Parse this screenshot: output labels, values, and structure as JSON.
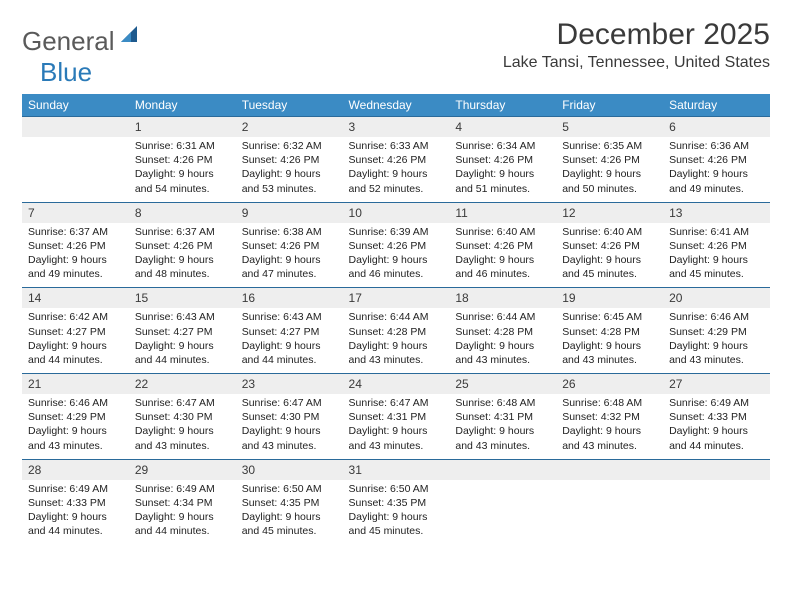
{
  "logo": {
    "text_general": "General",
    "text_blue": "Blue"
  },
  "title": "December 2025",
  "location": "Lake Tansi, Tennessee, United States",
  "colors": {
    "header_bg": "#3b8bc4",
    "header_text": "#ffffff",
    "daynum_bg": "#eeeeee",
    "row_border": "#2a6a9a",
    "logo_gray": "#5a5a5a",
    "logo_blue": "#2a7ab8"
  },
  "weekdays": [
    "Sunday",
    "Monday",
    "Tuesday",
    "Wednesday",
    "Thursday",
    "Friday",
    "Saturday"
  ],
  "weeks": [
    {
      "nums": [
        "",
        "1",
        "2",
        "3",
        "4",
        "5",
        "6"
      ],
      "cells": [
        {
          "sunrise": "",
          "sunset": "",
          "daylight": ""
        },
        {
          "sunrise": "Sunrise: 6:31 AM",
          "sunset": "Sunset: 4:26 PM",
          "daylight": "Daylight: 9 hours and 54 minutes."
        },
        {
          "sunrise": "Sunrise: 6:32 AM",
          "sunset": "Sunset: 4:26 PM",
          "daylight": "Daylight: 9 hours and 53 minutes."
        },
        {
          "sunrise": "Sunrise: 6:33 AM",
          "sunset": "Sunset: 4:26 PM",
          "daylight": "Daylight: 9 hours and 52 minutes."
        },
        {
          "sunrise": "Sunrise: 6:34 AM",
          "sunset": "Sunset: 4:26 PM",
          "daylight": "Daylight: 9 hours and 51 minutes."
        },
        {
          "sunrise": "Sunrise: 6:35 AM",
          "sunset": "Sunset: 4:26 PM",
          "daylight": "Daylight: 9 hours and 50 minutes."
        },
        {
          "sunrise": "Sunrise: 6:36 AM",
          "sunset": "Sunset: 4:26 PM",
          "daylight": "Daylight: 9 hours and 49 minutes."
        }
      ]
    },
    {
      "nums": [
        "7",
        "8",
        "9",
        "10",
        "11",
        "12",
        "13"
      ],
      "cells": [
        {
          "sunrise": "Sunrise: 6:37 AM",
          "sunset": "Sunset: 4:26 PM",
          "daylight": "Daylight: 9 hours and 49 minutes."
        },
        {
          "sunrise": "Sunrise: 6:37 AM",
          "sunset": "Sunset: 4:26 PM",
          "daylight": "Daylight: 9 hours and 48 minutes."
        },
        {
          "sunrise": "Sunrise: 6:38 AM",
          "sunset": "Sunset: 4:26 PM",
          "daylight": "Daylight: 9 hours and 47 minutes."
        },
        {
          "sunrise": "Sunrise: 6:39 AM",
          "sunset": "Sunset: 4:26 PM",
          "daylight": "Daylight: 9 hours and 46 minutes."
        },
        {
          "sunrise": "Sunrise: 6:40 AM",
          "sunset": "Sunset: 4:26 PM",
          "daylight": "Daylight: 9 hours and 46 minutes."
        },
        {
          "sunrise": "Sunrise: 6:40 AM",
          "sunset": "Sunset: 4:26 PM",
          "daylight": "Daylight: 9 hours and 45 minutes."
        },
        {
          "sunrise": "Sunrise: 6:41 AM",
          "sunset": "Sunset: 4:26 PM",
          "daylight": "Daylight: 9 hours and 45 minutes."
        }
      ]
    },
    {
      "nums": [
        "14",
        "15",
        "16",
        "17",
        "18",
        "19",
        "20"
      ],
      "cells": [
        {
          "sunrise": "Sunrise: 6:42 AM",
          "sunset": "Sunset: 4:27 PM",
          "daylight": "Daylight: 9 hours and 44 minutes."
        },
        {
          "sunrise": "Sunrise: 6:43 AM",
          "sunset": "Sunset: 4:27 PM",
          "daylight": "Daylight: 9 hours and 44 minutes."
        },
        {
          "sunrise": "Sunrise: 6:43 AM",
          "sunset": "Sunset: 4:27 PM",
          "daylight": "Daylight: 9 hours and 44 minutes."
        },
        {
          "sunrise": "Sunrise: 6:44 AM",
          "sunset": "Sunset: 4:28 PM",
          "daylight": "Daylight: 9 hours and 43 minutes."
        },
        {
          "sunrise": "Sunrise: 6:44 AM",
          "sunset": "Sunset: 4:28 PM",
          "daylight": "Daylight: 9 hours and 43 minutes."
        },
        {
          "sunrise": "Sunrise: 6:45 AM",
          "sunset": "Sunset: 4:28 PM",
          "daylight": "Daylight: 9 hours and 43 minutes."
        },
        {
          "sunrise": "Sunrise: 6:46 AM",
          "sunset": "Sunset: 4:29 PM",
          "daylight": "Daylight: 9 hours and 43 minutes."
        }
      ]
    },
    {
      "nums": [
        "21",
        "22",
        "23",
        "24",
        "25",
        "26",
        "27"
      ],
      "cells": [
        {
          "sunrise": "Sunrise: 6:46 AM",
          "sunset": "Sunset: 4:29 PM",
          "daylight": "Daylight: 9 hours and 43 minutes."
        },
        {
          "sunrise": "Sunrise: 6:47 AM",
          "sunset": "Sunset: 4:30 PM",
          "daylight": "Daylight: 9 hours and 43 minutes."
        },
        {
          "sunrise": "Sunrise: 6:47 AM",
          "sunset": "Sunset: 4:30 PM",
          "daylight": "Daylight: 9 hours and 43 minutes."
        },
        {
          "sunrise": "Sunrise: 6:47 AM",
          "sunset": "Sunset: 4:31 PM",
          "daylight": "Daylight: 9 hours and 43 minutes."
        },
        {
          "sunrise": "Sunrise: 6:48 AM",
          "sunset": "Sunset: 4:31 PM",
          "daylight": "Daylight: 9 hours and 43 minutes."
        },
        {
          "sunrise": "Sunrise: 6:48 AM",
          "sunset": "Sunset: 4:32 PM",
          "daylight": "Daylight: 9 hours and 43 minutes."
        },
        {
          "sunrise": "Sunrise: 6:49 AM",
          "sunset": "Sunset: 4:33 PM",
          "daylight": "Daylight: 9 hours and 44 minutes."
        }
      ]
    },
    {
      "nums": [
        "28",
        "29",
        "30",
        "31",
        "",
        "",
        ""
      ],
      "cells": [
        {
          "sunrise": "Sunrise: 6:49 AM",
          "sunset": "Sunset: 4:33 PM",
          "daylight": "Daylight: 9 hours and 44 minutes."
        },
        {
          "sunrise": "Sunrise: 6:49 AM",
          "sunset": "Sunset: 4:34 PM",
          "daylight": "Daylight: 9 hours and 44 minutes."
        },
        {
          "sunrise": "Sunrise: 6:50 AM",
          "sunset": "Sunset: 4:35 PM",
          "daylight": "Daylight: 9 hours and 45 minutes."
        },
        {
          "sunrise": "Sunrise: 6:50 AM",
          "sunset": "Sunset: 4:35 PM",
          "daylight": "Daylight: 9 hours and 45 minutes."
        },
        {
          "sunrise": "",
          "sunset": "",
          "daylight": ""
        },
        {
          "sunrise": "",
          "sunset": "",
          "daylight": ""
        },
        {
          "sunrise": "",
          "sunset": "",
          "daylight": ""
        }
      ]
    }
  ]
}
